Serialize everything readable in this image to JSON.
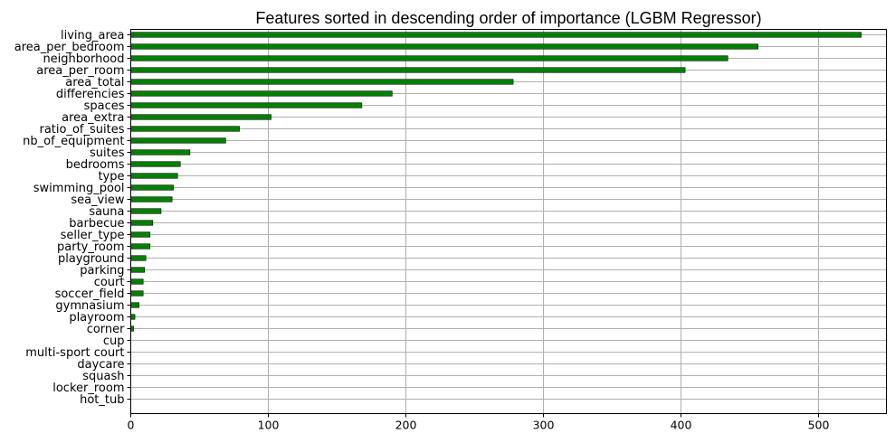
{
  "chart_data": {
    "type": "bar",
    "orientation": "horizontal",
    "title": "Features sorted in descending order of importance (LGBM Regressor)",
    "xlabel": "",
    "ylabel": "",
    "xlim": [
      0,
      550
    ],
    "xticks": [
      0,
      100,
      200,
      300,
      400,
      500
    ],
    "grid": true,
    "bar_color": "#008000",
    "categories": [
      "living_area",
      "area_per_bedroom",
      "neighborhood",
      "area_per_room",
      "area_total",
      "differencies",
      "spaces",
      "area_extra",
      "ratio_of_suites",
      "nb_of_equipment",
      "suites",
      "bedrooms",
      "type",
      "swimming_pool",
      "sea_view",
      "sauna",
      "barbecue",
      "seller_type",
      "party_room",
      "playground",
      "parking",
      "court",
      "soccer_field",
      "gymnasium",
      "playroom",
      "corner",
      "cup",
      "multi-sport court",
      "daycare",
      "squash",
      "locker_room",
      "hot_tub"
    ],
    "values": [
      531,
      456,
      434,
      403,
      278,
      190,
      168,
      102,
      79,
      69,
      43,
      36,
      34,
      31,
      30,
      22,
      16,
      14,
      14,
      11,
      10,
      9,
      9,
      6,
      3,
      2,
      0,
      0,
      0,
      0,
      0,
      0
    ]
  }
}
